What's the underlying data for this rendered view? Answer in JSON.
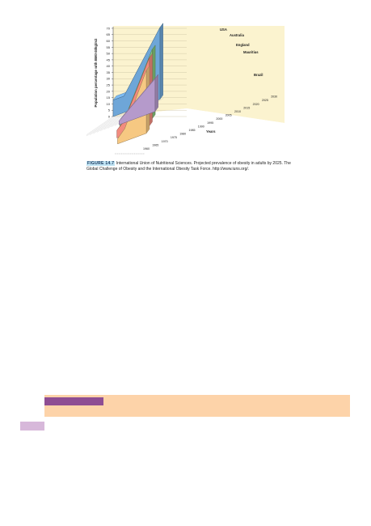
{
  "caption": {
    "label": "FIGURE 14.7",
    "text": "International Union of Nutritional Sciences. Projected prevalence of obesity in adults by 2025. The Global Challenge of Obesity and the International Obesity Task Force. http://www.iuns.org/."
  },
  "colors": {
    "panel_bg": "#fbf3cf",
    "banner": "#fdd3a9",
    "banner_tab": "#8e4d93",
    "side_box": "#d7b8da"
  },
  "chart_data": {
    "type": "area",
    "ylabel": "Population percentage with BMI>30kg/m2",
    "xlabel": "Years",
    "ylim": [
      0,
      70
    ],
    "yticks": [
      0,
      5,
      10,
      15,
      20,
      25,
      30,
      35,
      40,
      45,
      50,
      55,
      60,
      65,
      70
    ],
    "x": [
      1960,
      1965,
      1970,
      1975,
      1980,
      1985,
      1990,
      1995,
      2000,
      2005,
      2010,
      2015,
      2020,
      2025,
      2030
    ],
    "series": [
      {
        "name": "USA",
        "color": "#6ea6d8",
        "points": [
          [
            1960,
            13
          ],
          [
            1975,
            13
          ],
          [
            2025,
            57
          ]
        ]
      },
      {
        "name": "Australia",
        "color": "#84c47a",
        "points": [
          [
            1980,
            8
          ],
          [
            1990,
            12
          ],
          [
            2025,
            55
          ]
        ]
      },
      {
        "name": "England",
        "color": "#f28b7e",
        "points": [
          [
            1980,
            6
          ],
          [
            1990,
            11
          ],
          [
            2025,
            54
          ]
        ]
      },
      {
        "name": "Mauritius",
        "color": "#f6c882",
        "points": [
          [
            1985,
            4
          ],
          [
            1995,
            10
          ],
          [
            2025,
            50
          ]
        ]
      },
      {
        "name": "Brazil",
        "color": "#b59acb",
        "points": [
          [
            1975,
            3
          ],
          [
            2025,
            26
          ]
        ]
      }
    ]
  }
}
